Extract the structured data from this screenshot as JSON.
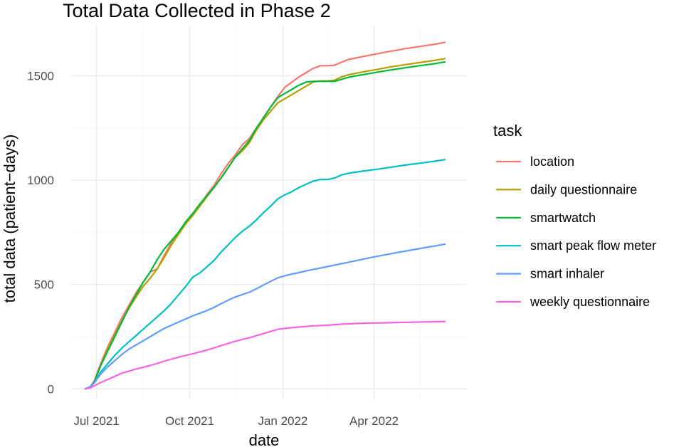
{
  "chart_data": {
    "type": "line",
    "title": "Total Data Collected in Phase 2",
    "xlabel": "date",
    "ylabel": "total data (patient−days)",
    "x_unit": "date",
    "xlim": [
      "2021-06-06",
      "2022-07-01"
    ],
    "ylim": [
      -50,
      1740
    ],
    "x_ticks": [
      {
        "date": "2021-07-01",
        "label": "Jul 2021"
      },
      {
        "date": "2021-10-01",
        "label": "Oct 2021"
      },
      {
        "date": "2022-01-01",
        "label": "Jan 2022"
      },
      {
        "date": "2022-04-01",
        "label": "Apr 2022"
      }
    ],
    "x_minor_ticks": [
      "2021-08-16",
      "2021-11-16",
      "2022-02-14",
      "2022-05-16"
    ],
    "y_ticks": [
      0,
      500,
      1000,
      1500
    ],
    "y_tick_labels": [
      "0",
      "500",
      "1000",
      "1500"
    ],
    "grid": true,
    "legend": {
      "title": "task",
      "position": "right"
    },
    "series": [
      {
        "name": "location",
        "color": "#F8766D",
        "points": [
          [
            "2021-06-20",
            0
          ],
          [
            "2021-06-25",
            10
          ],
          [
            "2021-06-29",
            40
          ],
          [
            "2021-07-05",
            120
          ],
          [
            "2021-07-12",
            200
          ],
          [
            "2021-07-19",
            270
          ],
          [
            "2021-07-26",
            340
          ],
          [
            "2021-08-02",
            400
          ],
          [
            "2021-08-09",
            460
          ],
          [
            "2021-08-16",
            510
          ],
          [
            "2021-08-23",
            560
          ],
          [
            "2021-08-30",
            575
          ],
          [
            "2021-09-06",
            640
          ],
          [
            "2021-09-13",
            700
          ],
          [
            "2021-09-20",
            750
          ],
          [
            "2021-09-27",
            795
          ],
          [
            "2021-10-04",
            840
          ],
          [
            "2021-10-11",
            880
          ],
          [
            "2021-10-18",
            930
          ],
          [
            "2021-10-25",
            975
          ],
          [
            "2021-11-01",
            1030
          ],
          [
            "2021-11-08",
            1080
          ],
          [
            "2021-11-15",
            1120
          ],
          [
            "2021-11-22",
            1170
          ],
          [
            "2021-11-29",
            1200
          ],
          [
            "2021-12-06",
            1250
          ],
          [
            "2021-12-13",
            1300
          ],
          [
            "2021-12-20",
            1350
          ],
          [
            "2021-12-27",
            1400
          ],
          [
            "2022-01-03",
            1445
          ],
          [
            "2022-01-10",
            1470
          ],
          [
            "2022-01-17",
            1495
          ],
          [
            "2022-01-24",
            1515
          ],
          [
            "2022-01-31",
            1535
          ],
          [
            "2022-02-07",
            1548
          ],
          [
            "2022-02-14",
            1548
          ],
          [
            "2022-02-21",
            1550
          ],
          [
            "2022-02-28",
            1565
          ],
          [
            "2022-03-07",
            1578
          ],
          [
            "2022-03-21",
            1592
          ],
          [
            "2022-04-04",
            1605
          ],
          [
            "2022-04-18",
            1618
          ],
          [
            "2022-05-02",
            1630
          ],
          [
            "2022-05-16",
            1640
          ],
          [
            "2022-05-30",
            1650
          ],
          [
            "2022-06-10",
            1660
          ]
        ]
      },
      {
        "name": "daily questionnaire",
        "color": "#B79F00",
        "points": [
          [
            "2021-06-20",
            0
          ],
          [
            "2021-06-25",
            10
          ],
          [
            "2021-06-29",
            35
          ],
          [
            "2021-07-05",
            110
          ],
          [
            "2021-07-12",
            190
          ],
          [
            "2021-07-19",
            260
          ],
          [
            "2021-07-26",
            325
          ],
          [
            "2021-08-02",
            385
          ],
          [
            "2021-08-09",
            440
          ],
          [
            "2021-08-16",
            490
          ],
          [
            "2021-08-23",
            530
          ],
          [
            "2021-08-30",
            575
          ],
          [
            "2021-09-06",
            630
          ],
          [
            "2021-09-13",
            690
          ],
          [
            "2021-09-20",
            740
          ],
          [
            "2021-09-27",
            790
          ],
          [
            "2021-10-04",
            830
          ],
          [
            "2021-10-11",
            875
          ],
          [
            "2021-10-18",
            920
          ],
          [
            "2021-10-25",
            965
          ],
          [
            "2021-11-01",
            1010
          ],
          [
            "2021-11-08",
            1060
          ],
          [
            "2021-11-15",
            1110
          ],
          [
            "2021-11-22",
            1140
          ],
          [
            "2021-11-29",
            1180
          ],
          [
            "2021-12-06",
            1240
          ],
          [
            "2021-12-13",
            1290
          ],
          [
            "2021-12-20",
            1330
          ],
          [
            "2021-12-27",
            1370
          ],
          [
            "2022-01-03",
            1390
          ],
          [
            "2022-01-10",
            1410
          ],
          [
            "2022-01-17",
            1430
          ],
          [
            "2022-01-24",
            1450
          ],
          [
            "2022-01-31",
            1470
          ],
          [
            "2022-02-07",
            1475
          ],
          [
            "2022-02-14",
            1475
          ],
          [
            "2022-02-21",
            1478
          ],
          [
            "2022-02-28",
            1495
          ],
          [
            "2022-03-07",
            1505
          ],
          [
            "2022-03-21",
            1518
          ],
          [
            "2022-04-04",
            1530
          ],
          [
            "2022-04-18",
            1543
          ],
          [
            "2022-05-02",
            1553
          ],
          [
            "2022-05-16",
            1563
          ],
          [
            "2022-05-30",
            1573
          ],
          [
            "2022-06-10",
            1582
          ]
        ]
      },
      {
        "name": "smartwatch",
        "color": "#00BA38",
        "points": [
          [
            "2021-06-20",
            0
          ],
          [
            "2021-06-25",
            10
          ],
          [
            "2021-06-29",
            35
          ],
          [
            "2021-07-05",
            110
          ],
          [
            "2021-07-12",
            180
          ],
          [
            "2021-07-19",
            250
          ],
          [
            "2021-07-26",
            320
          ],
          [
            "2021-08-02",
            390
          ],
          [
            "2021-08-09",
            450
          ],
          [
            "2021-08-16",
            510
          ],
          [
            "2021-08-23",
            560
          ],
          [
            "2021-08-30",
            620
          ],
          [
            "2021-09-06",
            670
          ],
          [
            "2021-09-13",
            710
          ],
          [
            "2021-09-20",
            750
          ],
          [
            "2021-09-27",
            800
          ],
          [
            "2021-10-04",
            840
          ],
          [
            "2021-10-11",
            885
          ],
          [
            "2021-10-18",
            925
          ],
          [
            "2021-10-25",
            965
          ],
          [
            "2021-11-01",
            1010
          ],
          [
            "2021-11-08",
            1060
          ],
          [
            "2021-11-15",
            1110
          ],
          [
            "2021-11-22",
            1150
          ],
          [
            "2021-11-29",
            1190
          ],
          [
            "2021-12-06",
            1250
          ],
          [
            "2021-12-13",
            1300
          ],
          [
            "2021-12-20",
            1350
          ],
          [
            "2021-12-27",
            1395
          ],
          [
            "2022-01-03",
            1415
          ],
          [
            "2022-01-10",
            1435
          ],
          [
            "2022-01-17",
            1455
          ],
          [
            "2022-01-24",
            1470
          ],
          [
            "2022-01-31",
            1473
          ],
          [
            "2022-02-07",
            1473
          ],
          [
            "2022-02-14",
            1473
          ],
          [
            "2022-02-21",
            1473
          ],
          [
            "2022-02-28",
            1483
          ],
          [
            "2022-03-07",
            1493
          ],
          [
            "2022-03-21",
            1505
          ],
          [
            "2022-04-04",
            1517
          ],
          [
            "2022-04-18",
            1528
          ],
          [
            "2022-05-02",
            1538
          ],
          [
            "2022-05-16",
            1548
          ],
          [
            "2022-05-30",
            1557
          ],
          [
            "2022-06-10",
            1566
          ]
        ]
      },
      {
        "name": "smart peak flow meter",
        "color": "#00BFC4",
        "points": [
          [
            "2021-06-20",
            0
          ],
          [
            "2021-06-25",
            10
          ],
          [
            "2021-06-29",
            30
          ],
          [
            "2021-07-05",
            80
          ],
          [
            "2021-07-12",
            120
          ],
          [
            "2021-07-19",
            160
          ],
          [
            "2021-07-26",
            195
          ],
          [
            "2021-08-02",
            225
          ],
          [
            "2021-08-09",
            255
          ],
          [
            "2021-08-16",
            285
          ],
          [
            "2021-08-23",
            315
          ],
          [
            "2021-08-30",
            345
          ],
          [
            "2021-09-06",
            375
          ],
          [
            "2021-09-13",
            410
          ],
          [
            "2021-09-20",
            450
          ],
          [
            "2021-09-27",
            490
          ],
          [
            "2021-10-04",
            535
          ],
          [
            "2021-10-11",
            555
          ],
          [
            "2021-10-18",
            585
          ],
          [
            "2021-10-25",
            615
          ],
          [
            "2021-11-01",
            655
          ],
          [
            "2021-11-08",
            690
          ],
          [
            "2021-11-15",
            725
          ],
          [
            "2021-11-22",
            755
          ],
          [
            "2021-11-29",
            780
          ],
          [
            "2021-12-06",
            810
          ],
          [
            "2021-12-13",
            845
          ],
          [
            "2021-12-20",
            875
          ],
          [
            "2021-12-27",
            910
          ],
          [
            "2022-01-03",
            930
          ],
          [
            "2022-01-10",
            945
          ],
          [
            "2022-01-17",
            965
          ],
          [
            "2022-01-24",
            980
          ],
          [
            "2022-01-31",
            995
          ],
          [
            "2022-02-07",
            1003
          ],
          [
            "2022-02-14",
            1003
          ],
          [
            "2022-02-21",
            1010
          ],
          [
            "2022-02-28",
            1025
          ],
          [
            "2022-03-07",
            1033
          ],
          [
            "2022-03-21",
            1043
          ],
          [
            "2022-04-04",
            1052
          ],
          [
            "2022-04-18",
            1062
          ],
          [
            "2022-05-02",
            1072
          ],
          [
            "2022-05-16",
            1081
          ],
          [
            "2022-05-30",
            1090
          ],
          [
            "2022-06-10",
            1098
          ]
        ]
      },
      {
        "name": "smart inhaler",
        "color": "#619CFF",
        "points": [
          [
            "2021-06-20",
            0
          ],
          [
            "2021-06-25",
            10
          ],
          [
            "2021-06-29",
            30
          ],
          [
            "2021-07-05",
            70
          ],
          [
            "2021-07-12",
            105
          ],
          [
            "2021-07-19",
            135
          ],
          [
            "2021-07-26",
            165
          ],
          [
            "2021-08-02",
            190
          ],
          [
            "2021-08-09",
            210
          ],
          [
            "2021-08-16",
            230
          ],
          [
            "2021-08-23",
            250
          ],
          [
            "2021-08-30",
            270
          ],
          [
            "2021-09-06",
            290
          ],
          [
            "2021-09-13",
            305
          ],
          [
            "2021-09-20",
            320
          ],
          [
            "2021-09-27",
            335
          ],
          [
            "2021-10-04",
            350
          ],
          [
            "2021-10-11",
            362
          ],
          [
            "2021-10-18",
            375
          ],
          [
            "2021-10-25",
            390
          ],
          [
            "2021-11-01",
            408
          ],
          [
            "2021-11-08",
            425
          ],
          [
            "2021-11-15",
            440
          ],
          [
            "2021-11-22",
            452
          ],
          [
            "2021-11-29",
            463
          ],
          [
            "2021-12-06",
            480
          ],
          [
            "2021-12-13",
            498
          ],
          [
            "2021-12-20",
            515
          ],
          [
            "2021-12-27",
            532
          ],
          [
            "2022-01-03",
            542
          ],
          [
            "2022-01-10",
            550
          ],
          [
            "2022-01-17",
            557
          ],
          [
            "2022-01-24",
            565
          ],
          [
            "2022-01-31",
            572
          ],
          [
            "2022-02-14",
            586
          ],
          [
            "2022-02-28",
            600
          ],
          [
            "2022-03-14",
            614
          ],
          [
            "2022-03-28",
            628
          ],
          [
            "2022-04-11",
            641
          ],
          [
            "2022-04-25",
            654
          ],
          [
            "2022-05-09",
            666
          ],
          [
            "2022-05-23",
            678
          ],
          [
            "2022-06-10",
            693
          ]
        ]
      },
      {
        "name": "weekly questionnaire",
        "color": "#F564E3",
        "points": [
          [
            "2021-06-20",
            0
          ],
          [
            "2021-06-25",
            5
          ],
          [
            "2021-06-29",
            15
          ],
          [
            "2021-07-05",
            30
          ],
          [
            "2021-07-12",
            45
          ],
          [
            "2021-07-19",
            60
          ],
          [
            "2021-07-26",
            75
          ],
          [
            "2021-08-02",
            85
          ],
          [
            "2021-08-09",
            95
          ],
          [
            "2021-08-16",
            103
          ],
          [
            "2021-08-23",
            112
          ],
          [
            "2021-08-30",
            122
          ],
          [
            "2021-09-06",
            133
          ],
          [
            "2021-09-13",
            143
          ],
          [
            "2021-09-20",
            152
          ],
          [
            "2021-09-27",
            160
          ],
          [
            "2021-10-04",
            168
          ],
          [
            "2021-10-11",
            177
          ],
          [
            "2021-10-18",
            186
          ],
          [
            "2021-10-25",
            196
          ],
          [
            "2021-11-01",
            207
          ],
          [
            "2021-11-08",
            218
          ],
          [
            "2021-11-15",
            228
          ],
          [
            "2021-11-22",
            237
          ],
          [
            "2021-11-29",
            245
          ],
          [
            "2021-12-06",
            255
          ],
          [
            "2021-12-13",
            265
          ],
          [
            "2021-12-20",
            275
          ],
          [
            "2021-12-27",
            285
          ],
          [
            "2022-01-03",
            290
          ],
          [
            "2022-01-17",
            296
          ],
          [
            "2022-01-31",
            302
          ],
          [
            "2022-02-14",
            305
          ],
          [
            "2022-02-28",
            310
          ],
          [
            "2022-03-14",
            313
          ],
          [
            "2022-03-28",
            315
          ],
          [
            "2022-04-25",
            318
          ],
          [
            "2022-05-23",
            321
          ],
          [
            "2022-06-10",
            323
          ]
        ]
      }
    ]
  }
}
